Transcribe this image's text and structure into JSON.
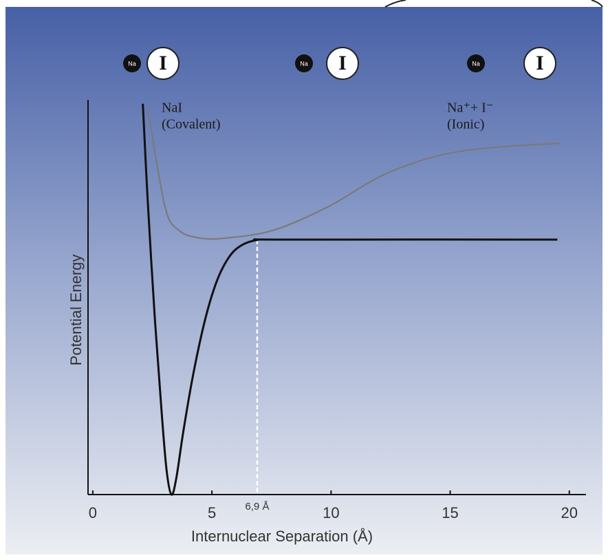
{
  "chart_data": {
    "type": "line",
    "xlabel": "Internuclear Separation (Å)",
    "ylabel": "Potential Energy",
    "xlim": [
      -0.2,
      20.7
    ],
    "ylim": [
      0,
      10
    ],
    "xticks": [
      0,
      5,
      10,
      15,
      20
    ],
    "marker": {
      "value": 6.9,
      "label": "6,9 Å",
      "y": 6.45
    },
    "series": [
      {
        "color": "#111111",
        "x": [
          2.1,
          2.3,
          2.6,
          2.9,
          3.1,
          3.3,
          3.5,
          3.8,
          4.2,
          4.7,
          5.2,
          5.7,
          6.2,
          6.9,
          8,
          19.5
        ],
        "values": [
          9.9,
          7.5,
          4.5,
          2.0,
          0.6,
          0,
          0.4,
          1.6,
          3.0,
          4.4,
          5.4,
          6.0,
          6.3,
          6.45,
          6.46,
          6.46
        ]
      },
      {
        "color": "#7a7a7a",
        "x": [
          2.3,
          3.03,
          3.6,
          4.47,
          5.6,
          7.6,
          9.9,
          12.2,
          14.6,
          16.9,
          19.6
        ],
        "values": [
          9.8,
          7.3,
          6.7,
          6.5,
          6.5,
          6.7,
          7.3,
          8.1,
          8.6,
          8.8,
          8.9
        ]
      }
    ],
    "annotations": [
      {
        "lines": [
          "NaI",
          "(Covalent)"
        ]
      },
      {
        "lines": [
          "Na⁺+ I⁻",
          "(Ionic)"
        ]
      }
    ],
    "atoms": [
      {
        "small": "Na",
        "large": "I"
      },
      {
        "small": "Na",
        "large": "I"
      },
      {
        "small": "Na",
        "large": "I"
      }
    ]
  }
}
